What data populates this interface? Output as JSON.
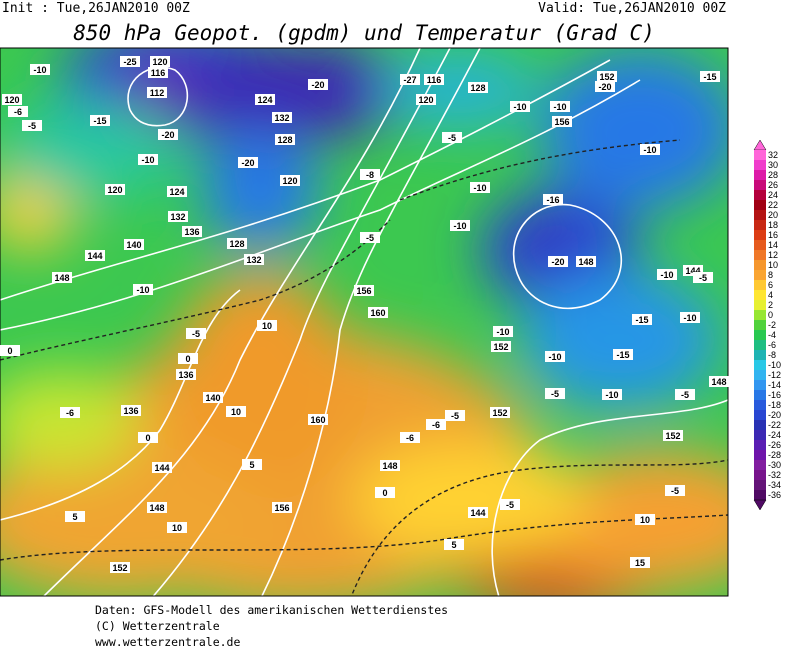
{
  "header": {
    "init": "Init : Tue,26JAN2010 00Z",
    "valid": "Valid: Tue,26JAN2010 00Z",
    "title": "850 hPa Geopot. (gpdm) und Temperatur (Grad C)"
  },
  "footer": {
    "line1": "Daten: GFS-Modell des amerikanischen Wetterdienstes",
    "line2": "(C) Wetterzentrale",
    "line3": "www.wetterzentrale.de"
  },
  "colorbar": {
    "levels": [
      32,
      30,
      28,
      26,
      24,
      22,
      20,
      18,
      16,
      14,
      12,
      10,
      8,
      6,
      4,
      2,
      0,
      -2,
      -4,
      -6,
      -8,
      -10,
      -12,
      -14,
      -16,
      -18,
      -20,
      -22,
      -24,
      -26,
      -28,
      -30,
      -32,
      -34,
      -36
    ],
    "colors": [
      "#ff66d9",
      "#f03ccc",
      "#dd1aa8",
      "#c80a7a",
      "#b4003c",
      "#a00014",
      "#b41414",
      "#c82814",
      "#dc3c14",
      "#e65a1e",
      "#f07828",
      "#f5962d",
      "#faa532",
      "#ffc832",
      "#ffe632",
      "#e6f032",
      "#96e632",
      "#50d23c",
      "#28c850",
      "#1ebe82",
      "#1eb4b4",
      "#28c8e6",
      "#32b4f0",
      "#3296f0",
      "#2878e6",
      "#285adc",
      "#2846d2",
      "#2832b4",
      "#3c28b4",
      "#5a1eb4",
      "#6e14aa",
      "#821ea0",
      "#78148c",
      "#641478",
      "#500a64"
    ]
  },
  "map_labels": [
    "-25",
    "120",
    "116",
    "112",
    "-20",
    "-15",
    "-10",
    "120",
    "-6",
    "-5",
    "-10",
    "120",
    "124",
    "132",
    "136",
    "128",
    "132",
    "140",
    "144",
    "148",
    "-10",
    "-5",
    "0",
    "136",
    "136",
    "140",
    "10",
    "10",
    "5",
    "144",
    "148",
    "10",
    "152",
    "156",
    "160",
    "156",
    "160",
    "-5",
    "124",
    "132",
    "128",
    "-20",
    "120",
    "-20",
    "-27",
    "116",
    "120",
    "128",
    "-5",
    "-10",
    "-10",
    "-16",
    "-20",
    "148",
    "-20",
    "152",
    "-15",
    "-10",
    "-10",
    "152",
    "-10",
    "-15",
    "-15",
    "-10",
    "-5",
    "-10",
    "152",
    "-5",
    "-6",
    "-6",
    "148",
    "0",
    "144",
    "-5",
    "5",
    "-5",
    "10",
    "15",
    "152",
    "148",
    "-5",
    "144",
    "-10",
    "-5",
    "0",
    "-6",
    "0",
    "5",
    "-10",
    "-10",
    "156",
    "-8"
  ]
}
